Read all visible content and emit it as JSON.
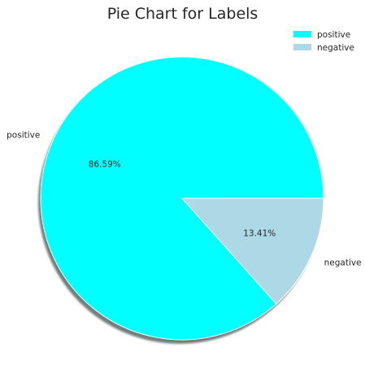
{
  "chart_data": {
    "type": "pie",
    "title": "Pie Chart for Labels",
    "categories": [
      "positive",
      "negative"
    ],
    "values": [
      86.59,
      13.41
    ],
    "percent_labels": [
      "86.59%",
      "13.41%"
    ],
    "colors": [
      "#00ffff",
      "#add8e6"
    ],
    "shadow": true,
    "legend": {
      "placement": "top-right",
      "entries": [
        "positive",
        "negative"
      ]
    }
  }
}
